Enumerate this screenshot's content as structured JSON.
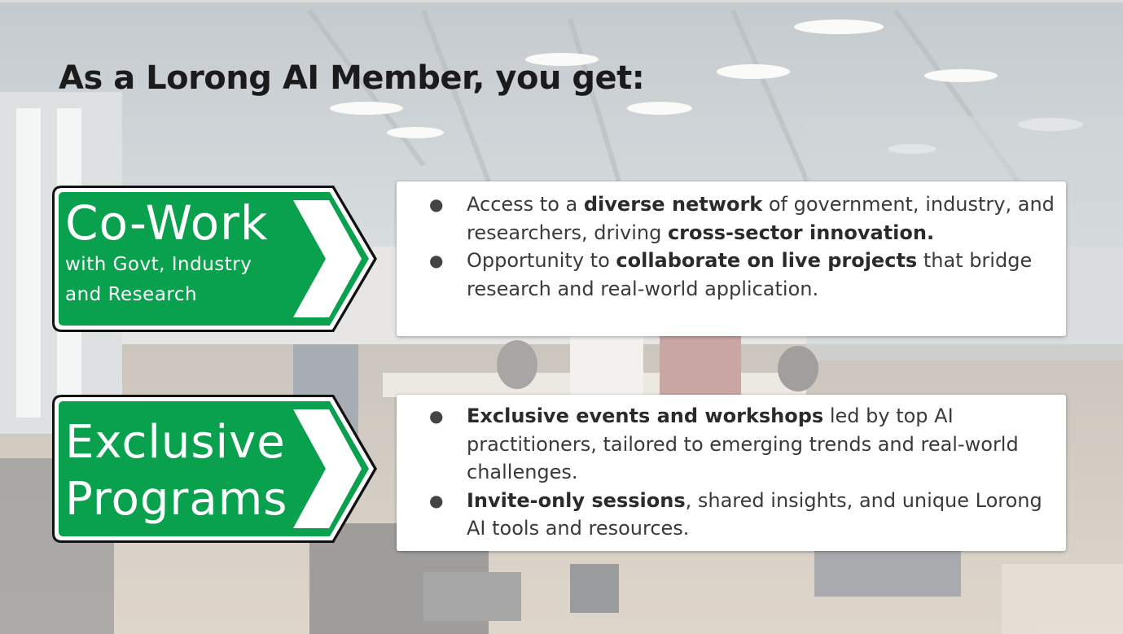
{
  "title": "As a Lorong AI Member, you get:",
  "colors": {
    "sign_green": "#0aa14e",
    "sign_border": "#ffffff",
    "text_dark": "#1b1b1b",
    "body_text": "#3a3a3a"
  },
  "signs": [
    {
      "heading": "Co-Work",
      "sub_line1": "with Govt, Industry",
      "sub_line2": "and Research"
    },
    {
      "line1": "Exclusive",
      "line2": "Programs"
    }
  ],
  "cards": [
    {
      "bullets": [
        {
          "pre": "Access to a ",
          "bold1": "diverse network",
          "mid": " of government, industry, and researchers, driving ",
          "bold2": "cross-sector innovation."
        },
        {
          "pre": "Opportunity to ",
          "bold1": "collaborate on live projects",
          "post": " that bridge research and real-world application."
        }
      ]
    },
    {
      "bullets": [
        {
          "bold1": "Exclusive events and workshops",
          "post": " led by top AI practitioners, tailored to emerging trends and real-world challenges."
        },
        {
          "bold1": "Invite-only sessions",
          "post": ", shared insights, and unique Lorong AI tools and resources."
        }
      ]
    }
  ],
  "bullet_glyph": "●"
}
